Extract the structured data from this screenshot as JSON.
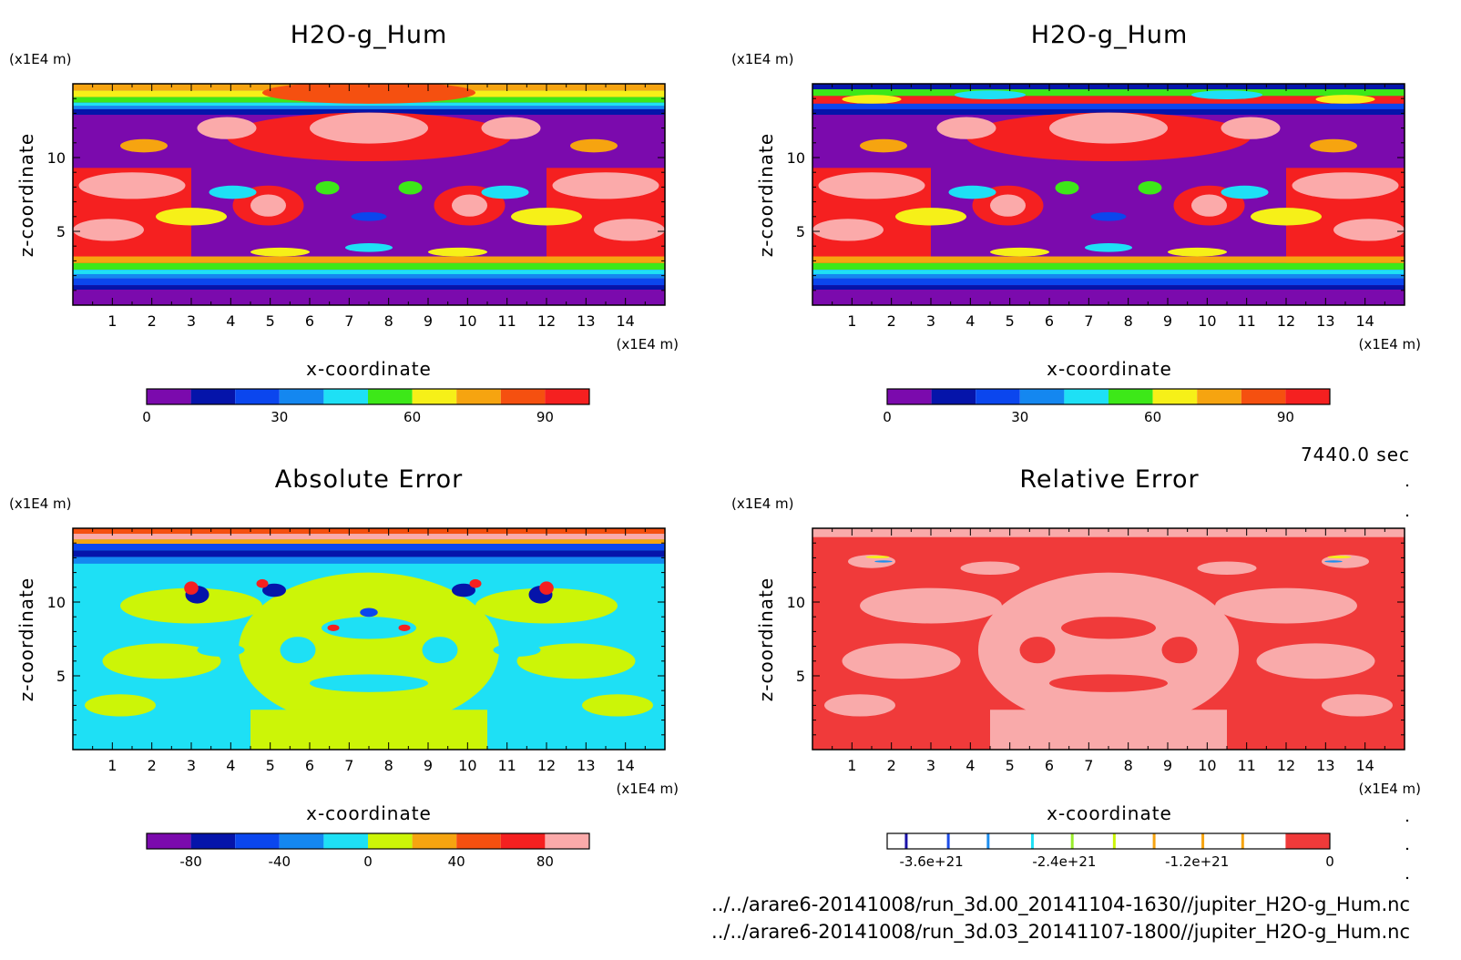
{
  "palette": {
    "hum": [
      "#7b0aad",
      "#0514aa",
      "#0b46ee",
      "#1487f0",
      "#1ee0f5",
      "#3de818",
      "#f6f018",
      "#f6a410",
      "#f55010",
      "#f52020"
    ],
    "abs_err": [
      "#7b0aad",
      "#0514aa",
      "#0b46ee",
      "#1487f0",
      "#1ee0f5",
      "#ccf507",
      "#f6a410",
      "#f55010",
      "#f52020",
      "#fbaaaa"
    ],
    "rel_err_marks": [
      "#1a12a8",
      "#1d4de8",
      "#1e8eef",
      "#1ee0f5",
      "#99ec2b",
      "#ccf507",
      "#f6a410",
      "#f6a410"
    ],
    "rel_err_main": "#f03a3a",
    "rel_err_light": "#f9aaaa"
  },
  "time_label": "7440.0 sec",
  "footer": {
    "file1": "../../arare6-20141008/run_3d.00_20141104-1630//jupiter_H2O-g_Hum.nc",
    "file2": "../../arare6-20141008/run_3d.03_20141107-1800//jupiter_H2O-g_Hum.nc"
  },
  "chart_data": [
    {
      "type": "heatmap",
      "title": "H2O-g_Hum",
      "xlabel": "x-coordinate",
      "ylabel": "z-coordinate",
      "x_units": "(x1E4 m)",
      "y_units": "(x1E4 m)",
      "xlim": [
        0,
        15
      ],
      "ylim": [
        0,
        15
      ],
      "xticks": [
        "1",
        "2",
        "3",
        "4",
        "5",
        "6",
        "7",
        "8",
        "9",
        "10",
        "11",
        "12",
        "13",
        "14"
      ],
      "yticks": [
        "5",
        "10"
      ],
      "colorbar": {
        "ticks": [
          "0",
          "30",
          "60",
          "90"
        ],
        "levels": [
          0,
          10,
          20,
          30,
          40,
          50,
          60,
          70,
          80,
          90,
          100
        ]
      }
    },
    {
      "type": "heatmap",
      "title": "H2O-g_Hum",
      "xlabel": "x-coordinate",
      "ylabel": "z-coordinate",
      "x_units": "(x1E4 m)",
      "y_units": "(x1E4 m)",
      "xlim": [
        0,
        15
      ],
      "ylim": [
        0,
        15
      ],
      "xticks": [
        "1",
        "2",
        "3",
        "4",
        "5",
        "6",
        "7",
        "8",
        "9",
        "10",
        "11",
        "12",
        "13",
        "14"
      ],
      "yticks": [
        "5",
        "10"
      ],
      "colorbar": {
        "ticks": [
          "0",
          "30",
          "60",
          "90"
        ],
        "levels": [
          0,
          10,
          20,
          30,
          40,
          50,
          60,
          70,
          80,
          90,
          100
        ]
      }
    },
    {
      "type": "heatmap",
      "title": "Absolute Error",
      "xlabel": "x-coordinate",
      "ylabel": "z-coordinate",
      "x_units": "(x1E4 m)",
      "y_units": "(x1E4 m)",
      "xlim": [
        0,
        15
      ],
      "ylim": [
        0,
        15
      ],
      "xticks": [
        "1",
        "2",
        "3",
        "4",
        "5",
        "6",
        "7",
        "8",
        "9",
        "10",
        "11",
        "12",
        "13",
        "14"
      ],
      "yticks": [
        "5",
        "10"
      ],
      "colorbar": {
        "ticks": [
          "-80",
          "-40",
          "0",
          "40",
          "80"
        ],
        "levels": [
          -100,
          -80,
          -60,
          -40,
          -20,
          0,
          20,
          40,
          60,
          80,
          100
        ]
      }
    },
    {
      "type": "heatmap",
      "title": "Relative Error",
      "xlabel": "x-coordinate",
      "ylabel": "z-coordinate",
      "x_units": "(x1E4 m)",
      "y_units": "(x1E4 m)",
      "xlim": [
        0,
        15
      ],
      "ylim": [
        0,
        15
      ],
      "xticks": [
        "1",
        "2",
        "3",
        "4",
        "5",
        "6",
        "7",
        "8",
        "9",
        "10",
        "11",
        "12",
        "13",
        "14"
      ],
      "yticks": [
        "5",
        "10"
      ],
      "colorbar": {
        "ticks": [
          "-3.6e+21",
          "-2.4e+21",
          "-1.2e+21",
          "0"
        ]
      }
    }
  ]
}
